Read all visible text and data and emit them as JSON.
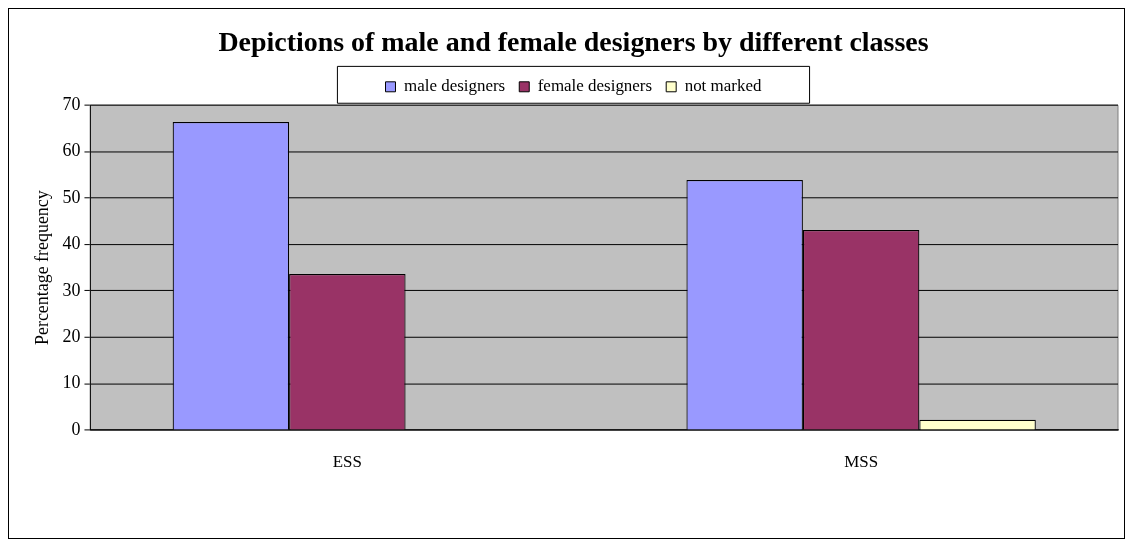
{
  "chart_data": {
    "type": "bar",
    "title": "Depictions of male and female designers by different classes",
    "ylabel": "Percentage frequency",
    "categories": [
      "ESS",
      "MSS"
    ],
    "series": [
      {
        "name": "male designers",
        "color": "#9999ff",
        "values": [
          66.4,
          53.9
        ]
      },
      {
        "name": "female designers",
        "color": "#993366",
        "values": [
          33.6,
          43.1
        ]
      },
      {
        "name": "not marked",
        "color": "#ffffcc",
        "values": [
          0,
          2.2
        ]
      }
    ],
    "ylim": [
      0,
      70
    ],
    "yticks": [
      0,
      10,
      20,
      30,
      40,
      50,
      60,
      70
    ],
    "grid": "y",
    "legend": "top"
  }
}
